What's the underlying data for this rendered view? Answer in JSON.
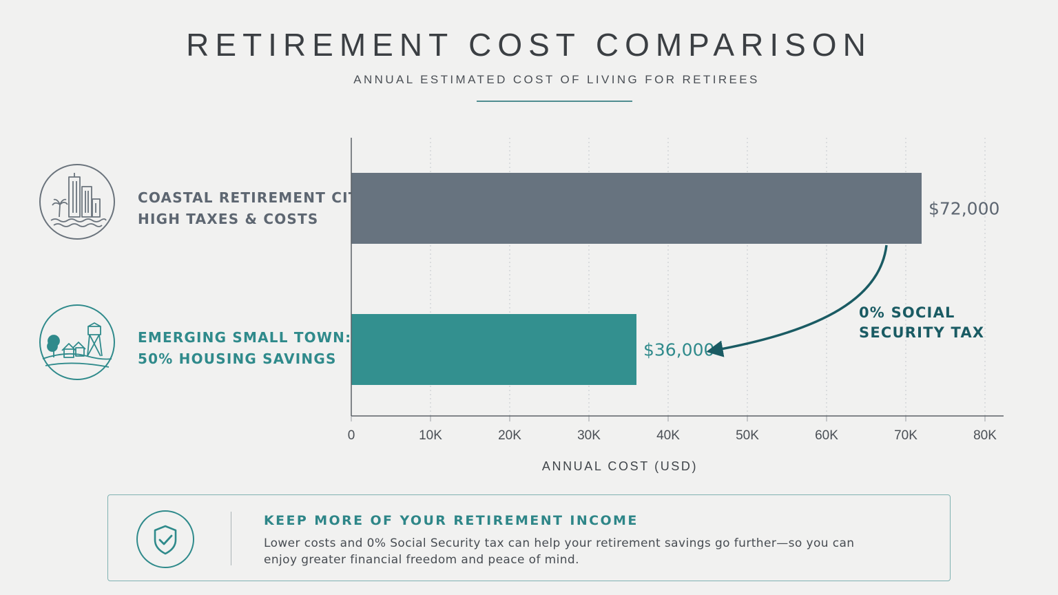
{
  "header": {
    "title": "RETIREMENT COST COMPARISON",
    "subtitle": "ANNUAL ESTIMATED COST OF LIVING FOR RETIREES"
  },
  "categories": [
    {
      "line1": "COASTAL RETIREMENT CITY:",
      "line2": "HIGH TAXES & COSTS",
      "icon": "city-skyline-icon",
      "color": "#5d6671"
    },
    {
      "line1": "EMERGING SMALL TOWN:",
      "line2": "50% HOUSING SAVINGS",
      "icon": "small-town-icon",
      "color": "#2f8a8b"
    }
  ],
  "chart_data": {
    "type": "bar",
    "orientation": "horizontal",
    "categories": [
      "COASTAL RETIREMENT CITY: HIGH TAXES & COSTS",
      "EMERGING SMALL TOWN: 50% HOUSING SAVINGS"
    ],
    "values": [
      72000,
      36000
    ],
    "data_labels": [
      "$72,000",
      "$36,000"
    ],
    "colors": [
      "#67737f",
      "#33908f"
    ],
    "xlabel": "ANNUAL COST (USD)",
    "xlim": [
      0,
      80000
    ],
    "xticks": [
      0,
      10000,
      20000,
      30000,
      40000,
      50000,
      60000,
      70000,
      80000
    ],
    "xtick_labels": [
      "0",
      "10K",
      "20K",
      "30K",
      "40K",
      "50K",
      "60K",
      "70K",
      "80K"
    ],
    "grid": "vertical dotted",
    "annotation": {
      "line1": "0% SOCIAL",
      "line2": "SECURITY TAX",
      "arrow": "from first bar to second bar label"
    }
  },
  "infobox": {
    "icon": "shield-check-icon",
    "heading": "KEEP MORE OF YOUR RETIREMENT INCOME",
    "body": "Lower costs and 0% Social Security tax can help your retirement savings go further—so you can enjoy greater financial freedom and peace of mind."
  },
  "colors": {
    "background": "#f1f1f0",
    "accent": "#2f8a8b",
    "slate": "#67737f",
    "dark_teal": "#1a5b63"
  }
}
